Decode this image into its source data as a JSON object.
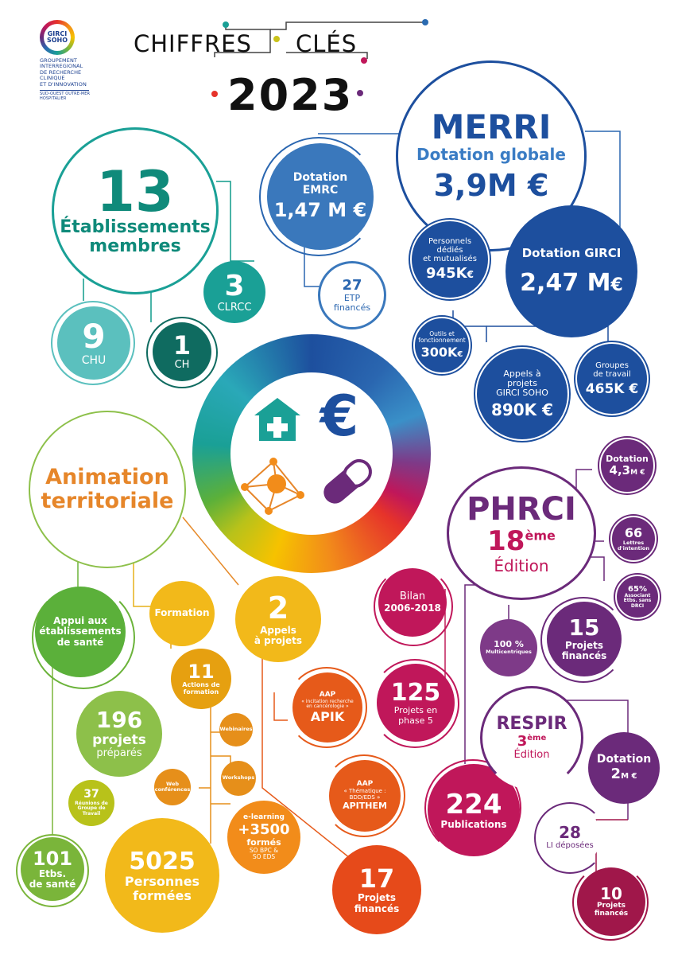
{
  "logo": {
    "word1": "GIRCI",
    "word2": "SOHO",
    "lines": [
      "GROUPEMENT",
      "INTERREGIONAL",
      "DE RECHERCHE",
      "CLINIQUE",
      "ET D'INNOVATION"
    ],
    "sub1": "SUD-OUEST OUTRE-MER",
    "sub2": "HOSPITALIER"
  },
  "header": {
    "w1": "CHIFFRES",
    "w2": "CLÉS",
    "year": "2023"
  },
  "etab": {
    "n": "13",
    "l1": "Établissements",
    "l2": "membres",
    "clrcc_n": "3",
    "clrcc_l": "CLRCC",
    "chu_n": "9",
    "chu_l": "CHU",
    "ch_n": "1",
    "ch_l": "CH"
  },
  "merri": {
    "title": "MERRI",
    "sub": "Dotation globale",
    "val": "3,9M €",
    "emrc_l1": "Dotation",
    "emrc_l2": "EMRC",
    "emrc_v": "1,47 M €",
    "etp_n": "27",
    "etp_l1": "ETP",
    "etp_l2": "financés",
    "pers_l1": "Personnels",
    "pers_l2": "dédiés",
    "pers_l3": "et mutualisés",
    "pers_v": "945K",
    "girci_l": "Dotation GIRCI",
    "girci_v": "2,47 M",
    "outil_l1": "Outils et",
    "outil_l2": "fonctionnement",
    "outil_v": "300K",
    "aap_l1": "Appels à",
    "aap_l2": "projets",
    "aap_l3": "GIRCI SOHO",
    "aap_v": "890K €",
    "gt_l1": "Groupes",
    "gt_l2": "de travail",
    "gt_v": "465K €",
    "euro": "€"
  },
  "anim": {
    "title1": "Animation",
    "title2": "territoriale",
    "appui_l1": "Appui aux",
    "appui_l2": "établissements",
    "appui_l3": "de santé",
    "formation": "Formation",
    "ap_n": "2",
    "ap_l1": "Appels",
    "ap_l2": "à projets",
    "proj_n": "196",
    "proj_l1": "projets",
    "proj_l2": "préparés",
    "reu_n": "37",
    "reu_l1": "Réunions de",
    "reu_l2": "Groupe de",
    "reu_l3": "Travail",
    "etbs_n": "101",
    "etbs_l1": "Etbs.",
    "etbs_l2": "de santé",
    "act_n": "11",
    "act_l1": "Actions de",
    "act_l2": "formation",
    "webi": "Webinaires",
    "work": "Workshops",
    "webc_l1": "Web",
    "webc_l2": "conférences",
    "el_l": "e-learning",
    "el_n": "+3500",
    "el_l2": "formés",
    "el_l3": "SO BPC &",
    "el_l4": "SO EDS",
    "pf_n": "5025",
    "pf_l1": "Personnes",
    "pf_l2": "formées",
    "apik_t": "AAP",
    "apik_s1": "« incitation recherche",
    "apik_s2": "en cancérologie »",
    "apik_n": "APIK",
    "apit_t": "AAP",
    "apit_s1": "« Thématique :",
    "apit_s2": "BDD/EDS »",
    "apit_n": "APITHEM",
    "pfin_n": "17",
    "pfin_l1": "Projets",
    "pfin_l2": "financés"
  },
  "phrci": {
    "title": "PHRCI",
    "ed_n": "18",
    "ed_sup": "ème",
    "ed_l": "Édition",
    "dot_l": "Dotation",
    "dot_v": "4,3",
    "dot_u": "M €",
    "li_n": "66",
    "li_l1": "Lettres",
    "li_l2": "d'intention",
    "pct_n": "65%",
    "pct_l1": "Associant",
    "pct_l2": "Etbs. sans",
    "pct_l3": "DRCI",
    "bilan_l": "Bilan",
    "bilan_v": "2006-2018",
    "mc_n": "100 %",
    "mc_l": "Multicentriques",
    "pf_n": "15",
    "pf_l1": "Projets",
    "pf_l2": "financés",
    "p5_n": "125",
    "p5_l1": "Projets en",
    "p5_l2": "phase 5",
    "pub_n": "224",
    "pub_l": "Publications"
  },
  "respir": {
    "title": "RESPIR",
    "ed_n": "3",
    "ed_sup": "ème",
    "ed_l": "Édition",
    "dot_l": "Dotation",
    "dot_v": "2",
    "dot_u": "M €",
    "li_n": "28",
    "li_l": "LI déposées",
    "pf_n": "10",
    "pf_l1": "Projets",
    "pf_l2": "financés"
  },
  "center": {
    "icons": [
      "hospital-icon",
      "euro-icon",
      "network-icon",
      "pill-icon"
    ]
  }
}
